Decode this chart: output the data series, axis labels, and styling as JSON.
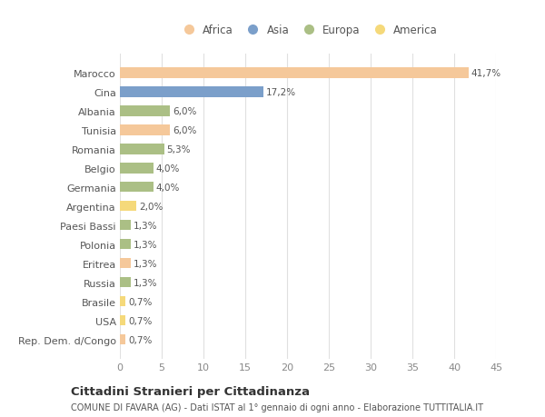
{
  "categories": [
    "Marocco",
    "Cina",
    "Albania",
    "Tunisia",
    "Romania",
    "Belgio",
    "Germania",
    "Argentina",
    "Paesi Bassi",
    "Polonia",
    "Eritrea",
    "Russia",
    "Brasile",
    "USA",
    "Rep. Dem. d/Congo"
  ],
  "values": [
    41.7,
    17.2,
    6.0,
    6.0,
    5.3,
    4.0,
    4.0,
    2.0,
    1.3,
    1.3,
    1.3,
    1.3,
    0.7,
    0.7,
    0.7
  ],
  "labels": [
    "41,7%",
    "17,2%",
    "6,0%",
    "6,0%",
    "5,3%",
    "4,0%",
    "4,0%",
    "2,0%",
    "1,3%",
    "1,3%",
    "1,3%",
    "1,3%",
    "0,7%",
    "0,7%",
    "0,7%"
  ],
  "colors": [
    "#F5C89A",
    "#7B9FCA",
    "#ABBF85",
    "#F5C89A",
    "#ABBF85",
    "#ABBF85",
    "#ABBF85",
    "#F5D97A",
    "#ABBF85",
    "#ABBF85",
    "#F5C89A",
    "#ABBF85",
    "#F5D97A",
    "#F5D97A",
    "#F5C89A"
  ],
  "legend_labels": [
    "Africa",
    "Asia",
    "Europa",
    "America"
  ],
  "legend_colors": [
    "#F5C89A",
    "#7B9FCA",
    "#ABBF85",
    "#F5D97A"
  ],
  "xlim": [
    0,
    45
  ],
  "xticks": [
    0,
    5,
    10,
    15,
    20,
    25,
    30,
    35,
    40,
    45
  ],
  "title_main": "Cittadini Stranieri per Cittadinanza",
  "title_sub": "COMUNE DI FAVARA (AG) - Dati ISTAT al 1° gennaio di ogni anno - Elaborazione TUTTITALIA.IT",
  "background_color": "#ffffff",
  "plot_bg_color": "#ffffff",
  "grid_color": "#e0e0e0",
  "bar_height": 0.55
}
